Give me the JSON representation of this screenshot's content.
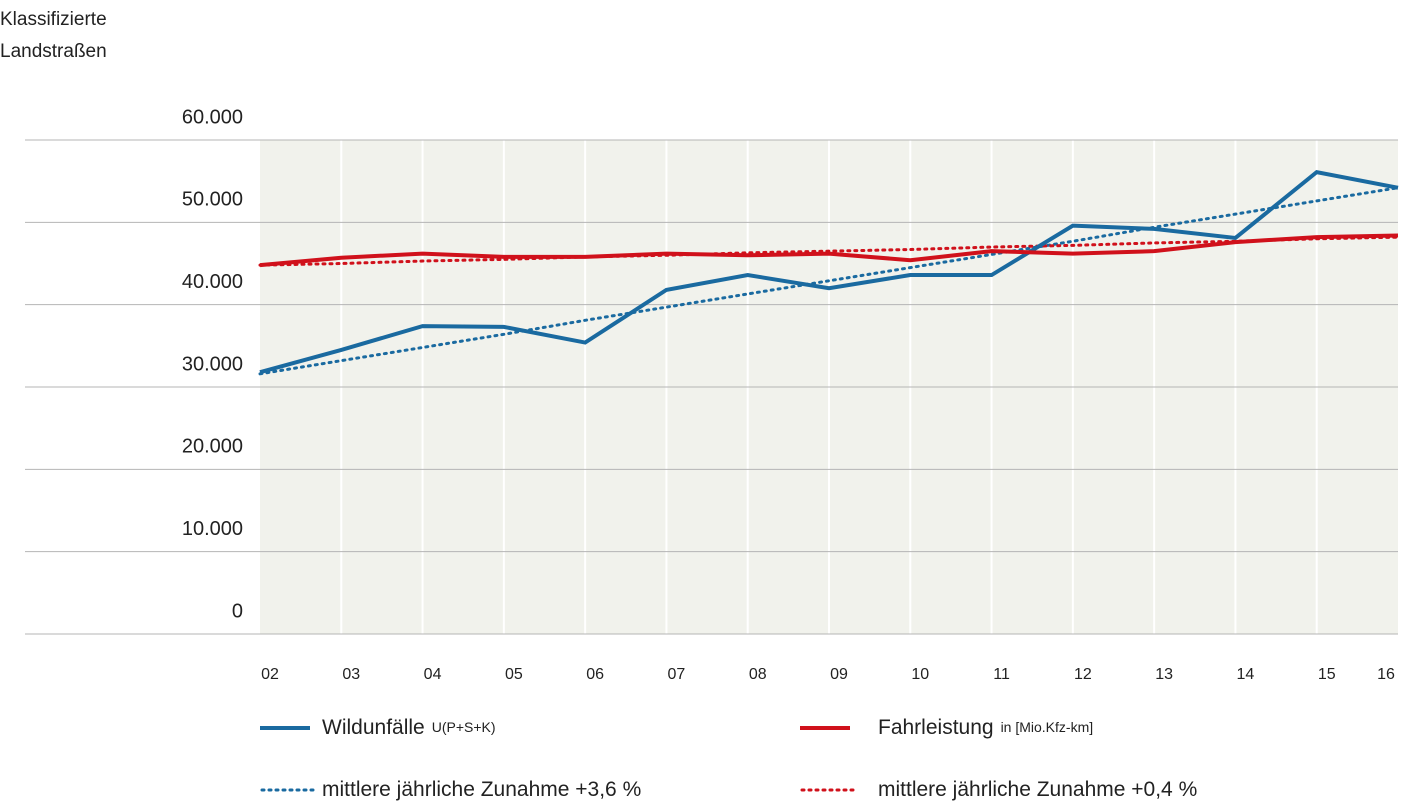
{
  "chart_data": {
    "type": "line",
    "title_lines": [
      "Klassifizierte",
      "Landstraßen"
    ],
    "categories": [
      "02",
      "03",
      "04",
      "05",
      "06",
      "07",
      "08",
      "09",
      "10",
      "11",
      "12",
      "13",
      "14",
      "15",
      "16"
    ],
    "series": [
      {
        "name": "Wildunfälle",
        "unit": "U(P+S+K)",
        "color": "#1a6aa0",
        "dash": "solid",
        "values": [
          31800,
          34500,
          37400,
          37300,
          35400,
          41800,
          43600,
          42000,
          43600,
          43600,
          49600,
          49200,
          48100,
          56100,
          54200
        ]
      },
      {
        "name": "Fahrleistung",
        "unit": "in [Mio.Kfz-km]",
        "color": "#d0111b",
        "dash": "solid",
        "values": [
          44800,
          45700,
          46200,
          45800,
          45800,
          46200,
          46000,
          46200,
          45400,
          46500,
          46200,
          46500,
          47600,
          48200,
          48400
        ]
      },
      {
        "name": "mittlere jährliche Zunahme +3,6 %",
        "color": "#1a6aa0",
        "dash": "dotted",
        "values": [
          31600,
          33200,
          34800,
          36400,
          38100,
          39700,
          41300,
          42900,
          44500,
          46100,
          47700,
          49400,
          51000,
          52600,
          54200
        ]
      },
      {
        "name": "mittlere jährliche Zunahme +0,4 %",
        "color": "#d0111b",
        "dash": "dotted",
        "values": [
          44800,
          45000,
          45300,
          45500,
          45800,
          46000,
          46300,
          46500,
          46700,
          47000,
          47200,
          47500,
          47700,
          48000,
          48200
        ]
      }
    ],
    "ylim": [
      0,
      60000
    ],
    "yticks": [
      0,
      {
        "value": 10000,
        "label": "10.000"
      },
      {
        "value": 20000,
        "label": "20.000"
      },
      {
        "value": 30000,
        "label": "30.000"
      },
      {
        "value": 40000,
        "label": "40.000"
      },
      {
        "value": 50000,
        "label": "50.000"
      },
      {
        "value": 60000,
        "label": "60.000"
      }
    ],
    "grid": true
  }
}
